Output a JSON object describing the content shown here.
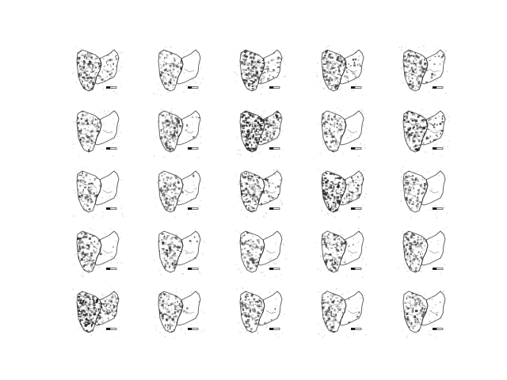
{
  "figure": {
    "background_color": "#ffffff",
    "ink_color": "#1a1a1a",
    "grid": {
      "rows": 5,
      "columns": 5
    },
    "samples": [
      {
        "row": 1,
        "col": 1,
        "fill_intensity": 0.55
      },
      {
        "row": 1,
        "col": 2,
        "fill_intensity": 0.3
      },
      {
        "row": 1,
        "col": 3,
        "fill_intensity": 0.65
      },
      {
        "row": 1,
        "col": 4,
        "fill_intensity": 0.55
      },
      {
        "row": 1,
        "col": 5,
        "fill_intensity": 0.45
      },
      {
        "row": 2,
        "col": 1,
        "fill_intensity": 0.35
      },
      {
        "row": 2,
        "col": 2,
        "fill_intensity": 0.4
      },
      {
        "row": 2,
        "col": 3,
        "fill_intensity": 0.9
      },
      {
        "row": 2,
        "col": 4,
        "fill_intensity": 0.35
      },
      {
        "row": 2,
        "col": 5,
        "fill_intensity": 0.7
      },
      {
        "row": 3,
        "col": 1,
        "fill_intensity": 0.25
      },
      {
        "row": 3,
        "col": 2,
        "fill_intensity": 0.4
      },
      {
        "row": 3,
        "col": 3,
        "fill_intensity": 0.55
      },
      {
        "row": 3,
        "col": 4,
        "fill_intensity": 0.85
      },
      {
        "row": 3,
        "col": 5,
        "fill_intensity": 0.3
      },
      {
        "row": 4,
        "col": 1,
        "fill_intensity": 0.4
      },
      {
        "row": 4,
        "col": 2,
        "fill_intensity": 0.4
      },
      {
        "row": 4,
        "col": 3,
        "fill_intensity": 0.3
      },
      {
        "row": 4,
        "col": 4,
        "fill_intensity": 0.4
      },
      {
        "row": 4,
        "col": 5,
        "fill_intensity": 0.35
      },
      {
        "row": 5,
        "col": 1,
        "fill_intensity": 0.95
      },
      {
        "row": 5,
        "col": 2,
        "fill_intensity": 0.4
      },
      {
        "row": 5,
        "col": 3,
        "fill_intensity": 0.4
      },
      {
        "row": 5,
        "col": 4,
        "fill_intensity": 0.4
      },
      {
        "row": 5,
        "col": 5,
        "fill_intensity": 0.4
      }
    ]
  }
}
